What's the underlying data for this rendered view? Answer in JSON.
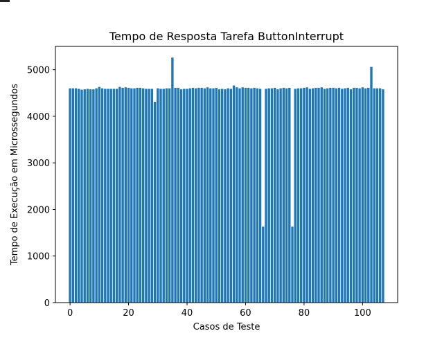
{
  "chart_data": {
    "type": "bar",
    "title": "Tempo de Resposta Tarefa ButtonInterrupt",
    "xlabel": "Casos de Teste",
    "ylabel": "Tempo de Execução em Microssegundos",
    "xlim": [
      -5,
      112
    ],
    "ylim": [
      0,
      5500
    ],
    "xticks": [
      0,
      20,
      40,
      60,
      80,
      100
    ],
    "yticks": [
      0,
      1000,
      2000,
      3000,
      4000,
      5000
    ],
    "grid": false,
    "bar_color": "#1f77b4",
    "x": [
      0,
      1,
      2,
      3,
      4,
      5,
      6,
      7,
      8,
      9,
      10,
      11,
      12,
      13,
      14,
      15,
      16,
      17,
      18,
      19,
      20,
      21,
      22,
      23,
      24,
      25,
      26,
      27,
      28,
      29,
      30,
      31,
      32,
      33,
      34,
      35,
      36,
      37,
      38,
      39,
      40,
      41,
      42,
      43,
      44,
      45,
      46,
      47,
      48,
      49,
      50,
      51,
      52,
      53,
      54,
      55,
      56,
      57,
      58,
      59,
      60,
      61,
      62,
      63,
      64,
      65,
      66,
      67,
      68,
      69,
      70,
      71,
      72,
      73,
      74,
      75,
      76,
      77,
      78,
      79,
      80,
      81,
      82,
      83,
      84,
      85,
      86,
      87,
      88,
      89,
      90,
      91,
      92,
      93,
      94,
      95,
      96,
      97,
      98,
      99,
      100,
      101,
      102,
      103,
      104,
      105,
      106,
      107
    ],
    "values": [
      4600,
      4600,
      4600,
      4590,
      4570,
      4580,
      4590,
      4580,
      4580,
      4600,
      4630,
      4600,
      4590,
      4590,
      4590,
      4590,
      4590,
      4630,
      4610,
      4620,
      4610,
      4600,
      4600,
      4610,
      4610,
      4600,
      4590,
      4590,
      4590,
      4310,
      4600,
      4590,
      4590,
      4600,
      4600,
      5260,
      4610,
      4610,
      4580,
      4590,
      4590,
      4600,
      4610,
      4600,
      4610,
      4610,
      4600,
      4620,
      4600,
      4600,
      4610,
      4580,
      4590,
      4580,
      4600,
      4590,
      4660,
      4620,
      4600,
      4620,
      4610,
      4610,
      4600,
      4610,
      4600,
      4590,
      1630,
      4590,
      4600,
      4600,
      4610,
      4580,
      4600,
      4610,
      4600,
      4610,
      1630,
      4590,
      4600,
      4600,
      4610,
      4620,
      4590,
      4600,
      4610,
      4610,
      4620,
      4590,
      4600,
      4610,
      4610,
      4600,
      4610,
      4590,
      4600,
      4610,
      4580,
      4610,
      4610,
      4600,
      4620,
      4600,
      4610,
      5060,
      4600,
      4600,
      4600,
      4580
    ]
  }
}
